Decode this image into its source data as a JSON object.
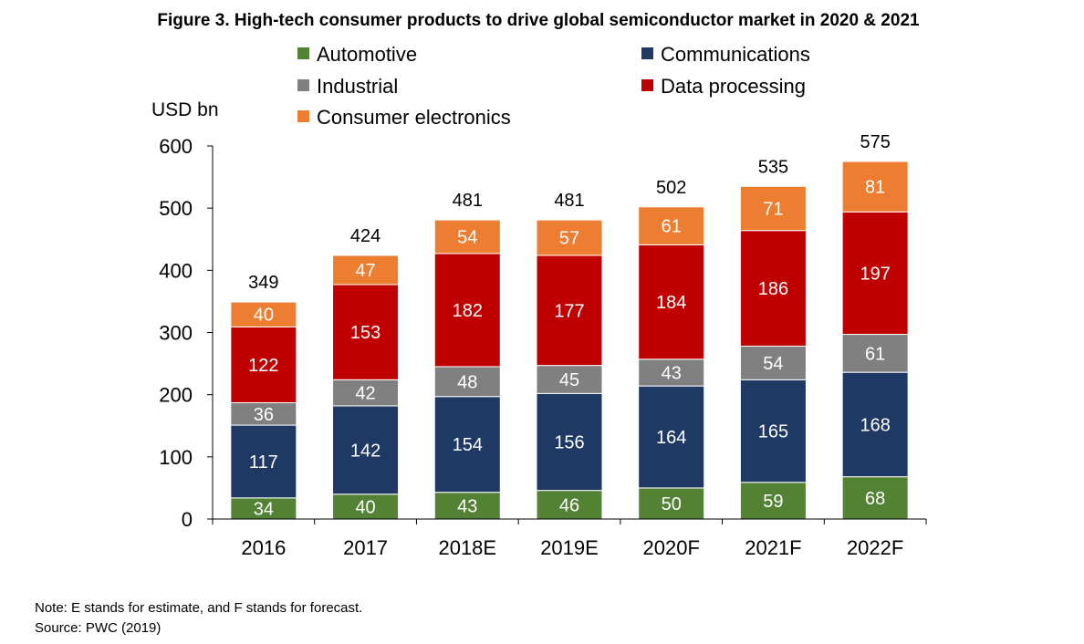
{
  "chart_data": {
    "type": "bar",
    "stacked": true,
    "title": "Figure 3. High-tech consumer products to drive global semiconductor market in 2020 & 2021",
    "ylabel": "USD bn",
    "xlabel": "",
    "ylim": [
      0,
      600
    ],
    "yticks": [
      0,
      100,
      200,
      300,
      400,
      500,
      600
    ],
    "categories": [
      "2016",
      "2017",
      "2018E",
      "2019E",
      "2020F",
      "2021F",
      "2022F"
    ],
    "series": [
      {
        "name": "Automotive",
        "color": "#548235",
        "values": [
          34,
          40,
          43,
          46,
          50,
          59,
          68
        ]
      },
      {
        "name": "Communications",
        "color": "#1F3864",
        "values": [
          117,
          142,
          154,
          156,
          164,
          165,
          168
        ]
      },
      {
        "name": "Industrial",
        "color": "#808080",
        "values": [
          36,
          42,
          48,
          45,
          43,
          54,
          61
        ]
      },
      {
        "name": "Data processing",
        "color": "#C00000",
        "values": [
          122,
          153,
          182,
          177,
          184,
          186,
          197
        ]
      },
      {
        "name": "Consumer electronics",
        "color": "#ED7D31",
        "values": [
          40,
          47,
          54,
          57,
          61,
          71,
          81
        ]
      }
    ],
    "totals": [
      349,
      424,
      481,
      481,
      502,
      535,
      575
    ],
    "legend_position": "top"
  },
  "notes": {
    "line1": "Note: E stands for estimate, and F stands for forecast.",
    "line2": "Source: PWC (2019)"
  }
}
